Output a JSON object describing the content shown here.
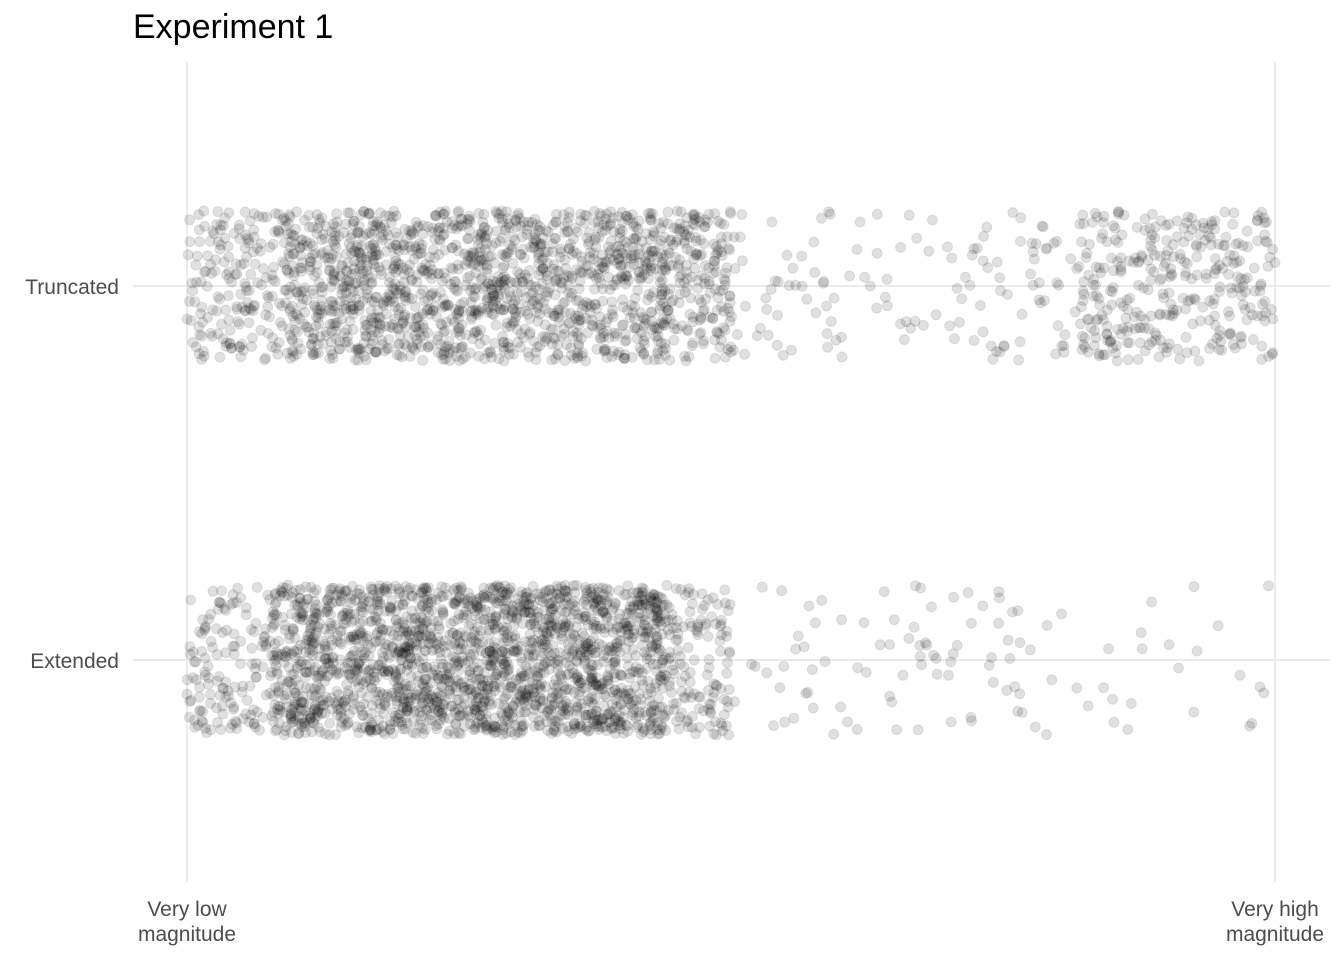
{
  "chart_data": {
    "type": "scatter",
    "title": "Experiment 1",
    "subtitle": "",
    "xlabel": "",
    "ylabel": "",
    "jitter": true,
    "grid": true,
    "legend": "none",
    "point_color": "#000000",
    "point_opacity": 0.12,
    "gridline_color": "#ebebeb",
    "categories": [
      "Truncated",
      "Extended"
    ],
    "x_ticks": [
      {
        "value": 0,
        "lines": [
          "Very low",
          "magnitude"
        ]
      },
      {
        "value": 100,
        "lines": [
          "Very high",
          "magnitude"
        ]
      }
    ],
    "xlim": [
      0,
      100
    ],
    "series": [
      {
        "category": "Truncated",
        "n_points": 2200,
        "segments": [
          {
            "from": 0,
            "to": 9,
            "share": 0.08
          },
          {
            "from": 9,
            "to": 44,
            "share": 0.63
          },
          {
            "from": 44,
            "to": 50,
            "share": 0.08
          },
          {
            "from": 50,
            "to": 82,
            "share": 0.06
          },
          {
            "from": 82,
            "to": 100,
            "share": 0.15
          }
        ]
      },
      {
        "category": "Extended",
        "n_points": 2400,
        "segments": [
          {
            "from": 0,
            "to": 8,
            "share": 0.06
          },
          {
            "from": 8,
            "to": 44,
            "share": 0.84
          },
          {
            "from": 44,
            "to": 50,
            "share": 0.055
          },
          {
            "from": 50,
            "to": 80,
            "share": 0.035
          },
          {
            "from": 80,
            "to": 100,
            "share": 0.01
          }
        ]
      }
    ]
  }
}
